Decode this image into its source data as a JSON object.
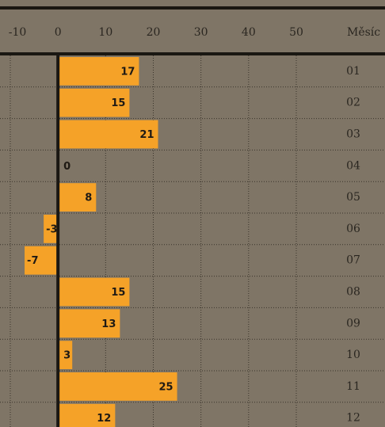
{
  "chart_data": {
    "type": "bar",
    "orientation": "horizontal",
    "axis_label": "Měsíc",
    "categories": [
      "01",
      "02",
      "03",
      "04",
      "05",
      "06",
      "07",
      "08",
      "09",
      "10",
      "11",
      "12"
    ],
    "values": [
      17,
      15,
      21,
      0,
      8,
      -3,
      -7,
      15,
      13,
      3,
      25,
      12
    ],
    "color": "#f5a228",
    "xlim": [
      -10,
      50
    ],
    "xticks": [
      -10,
      0,
      10,
      20,
      30,
      40,
      50
    ],
    "grid": true
  }
}
